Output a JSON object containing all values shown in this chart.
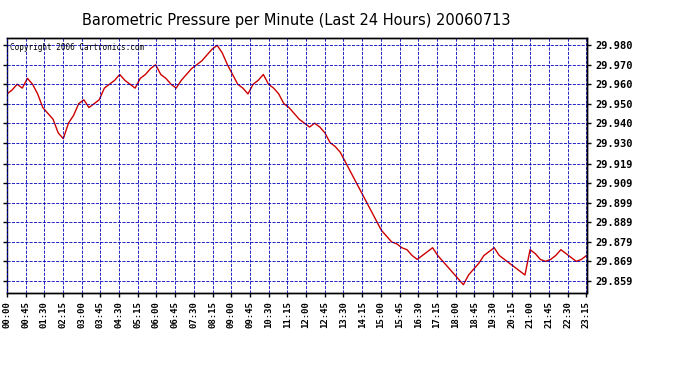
{
  "title": "Barometric Pressure per Minute (Last 24 Hours) 20060713",
  "copyright": "Copyright 2006 Cartronics.com",
  "yticks": [
    29.98,
    29.97,
    29.96,
    29.95,
    29.94,
    29.93,
    29.919,
    29.909,
    29.899,
    29.889,
    29.879,
    29.869,
    29.859
  ],
  "ylim": [
    29.853,
    29.984
  ],
  "xtick_labels": [
    "00:00",
    "00:45",
    "01:30",
    "02:15",
    "03:00",
    "03:45",
    "04:30",
    "05:15",
    "06:00",
    "06:45",
    "07:30",
    "08:15",
    "09:00",
    "09:45",
    "10:30",
    "11:15",
    "12:00",
    "12:45",
    "13:30",
    "14:15",
    "15:00",
    "15:45",
    "16:30",
    "17:15",
    "18:00",
    "18:45",
    "19:30",
    "20:15",
    "21:00",
    "21:45",
    "22:30",
    "23:15"
  ],
  "line_color": "#cc0000",
  "grid_color": "#0000bb",
  "bg_color": "#ffffff",
  "outer_bg": "#ffffff",
  "title_color": "#000000",
  "pressure_data": [
    29.955,
    29.957,
    29.96,
    29.958,
    29.963,
    29.96,
    29.955,
    29.948,
    29.945,
    29.942,
    29.935,
    29.932,
    29.94,
    29.944,
    29.95,
    29.952,
    29.948,
    29.95,
    29.952,
    29.958,
    29.96,
    29.962,
    29.965,
    29.962,
    29.96,
    29.958,
    29.963,
    29.965,
    29.968,
    29.97,
    29.965,
    29.963,
    29.96,
    29.958,
    29.962,
    29.965,
    29.968,
    29.97,
    29.972,
    29.975,
    29.978,
    29.98,
    29.976,
    29.97,
    29.965,
    29.96,
    29.958,
    29.955,
    29.96,
    29.962,
    29.965,
    29.96,
    29.958,
    29.955,
    29.95,
    29.948,
    29.945,
    29.942,
    29.94,
    29.938,
    29.94,
    29.938,
    29.935,
    29.93,
    29.928,
    29.925,
    29.92,
    29.915,
    29.91,
    29.905,
    29.9,
    29.895,
    29.89,
    29.885,
    29.882,
    29.879,
    29.878,
    29.876,
    29.875,
    29.872,
    29.87,
    29.872,
    29.874,
    29.876,
    29.872,
    29.869,
    29.866,
    29.863,
    29.86,
    29.857,
    29.862,
    29.865,
    29.868,
    29.872,
    29.874,
    29.876,
    29.872,
    29.87,
    29.868,
    29.866,
    29.864,
    29.862,
    29.875,
    29.873,
    29.87,
    29.869,
    29.87,
    29.872,
    29.875,
    29.873,
    29.871,
    29.869,
    29.87,
    29.872
  ]
}
